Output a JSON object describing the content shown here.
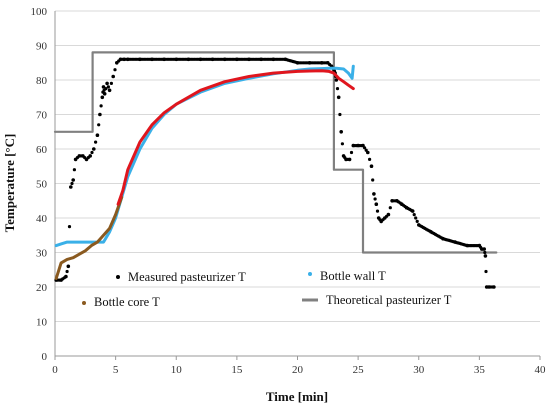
{
  "chart_data": {
    "type": "scatter",
    "title": "",
    "xlabel": "Time [min]",
    "ylabel": "Temperature [°C]",
    "xlim": [
      0,
      40
    ],
    "ylim": [
      0,
      100
    ],
    "xticks": [
      0,
      5,
      10,
      15,
      20,
      25,
      30,
      35,
      40
    ],
    "yticks": [
      0,
      10,
      20,
      30,
      40,
      50,
      60,
      70,
      80,
      90,
      100
    ],
    "grid": "horizontal",
    "legend": "inside-bottom",
    "series": [
      {
        "name": "Theoretical pasteurizer T",
        "kind": "line",
        "color": "#808080",
        "x": [
          0,
          3.1,
          3.1,
          23.0,
          23.0,
          25.4,
          25.4,
          36.4
        ],
        "y": [
          65,
          65,
          88,
          88,
          54,
          54,
          30,
          30
        ]
      },
      {
        "name": "Measured pasteurizer T",
        "kind": "scatter",
        "color": "#000000",
        "x": [
          0.1,
          0.5,
          0.9,
          1.1,
          1.3,
          1.5,
          1.7,
          2.0,
          2.3,
          2.6,
          2.9,
          3.2,
          3.5,
          3.7,
          3.9,
          4.0,
          4.1,
          4.3,
          4.5,
          4.8,
          5.1,
          5.4,
          5.7,
          6,
          7,
          8,
          9,
          10,
          11,
          12,
          13,
          14,
          15,
          16,
          17,
          18,
          19,
          20,
          21,
          22,
          22.5,
          22.8,
          23.0,
          23.1,
          23.2,
          23.4,
          23.6,
          23.8,
          24.0,
          24.3,
          24.6,
          25.0,
          25.4,
          25.8,
          26.1,
          26.3,
          26.5,
          26.7,
          26.9,
          27.2,
          27.5,
          27.8,
          28.2,
          28.6,
          29.0,
          29.5,
          30,
          31,
          32,
          33,
          34,
          35,
          35.2,
          35.4,
          35.5,
          35.6,
          35.8,
          36.2
        ],
        "y": [
          22,
          22,
          23,
          26,
          49,
          51,
          57,
          58,
          58,
          57,
          58,
          60,
          64,
          70,
          75,
          78,
          76,
          79,
          77,
          81,
          85,
          86,
          86,
          86,
          86,
          86,
          86,
          86,
          86,
          86,
          86,
          86,
          86,
          86,
          86,
          86,
          86,
          85,
          85,
          85,
          85,
          84,
          83,
          82,
          80,
          75,
          65,
          58,
          57,
          57,
          61,
          61,
          61,
          59,
          55,
          47,
          44,
          40,
          39,
          40,
          41,
          45,
          45,
          44,
          43,
          42,
          38,
          36,
          34,
          33,
          32,
          32,
          31,
          31,
          29,
          20,
          20,
          20
        ]
      },
      {
        "name": "Bottle wall T",
        "kind": "line",
        "color": "#3ab0e8",
        "x": [
          0.1,
          0.5,
          1,
          2,
          3,
          4,
          4.5,
          5,
          5.5,
          6,
          7,
          8,
          9,
          10,
          12,
          14,
          16,
          18,
          20,
          21,
          22,
          22.6,
          23.2,
          23.8,
          24.2,
          24.5,
          24.6
        ],
        "y": [
          32,
          32.5,
          33,
          33,
          33,
          33,
          36,
          40,
          46,
          52,
          60,
          66,
          70,
          73,
          76.5,
          79,
          80.5,
          81.8,
          82.8,
          83.2,
          83.3,
          83.4,
          83.4,
          83.2,
          82,
          80.5,
          84
        ]
      },
      {
        "name": "Bottle core T",
        "kind": "line",
        "color": "#8a5a20",
        "x": [
          0.1,
          0.5,
          1,
          1.5,
          2,
          2.5,
          3,
          3.5,
          4,
          4.5,
          5,
          5.5
        ],
        "y": [
          22.5,
          27,
          28,
          28.5,
          29.5,
          30.5,
          32,
          33,
          35,
          37,
          41,
          46
        ]
      },
      {
        "name": "",
        "kind": "line",
        "color": "#e0161e",
        "x": [
          5.2,
          5.6,
          6,
          7,
          8,
          9,
          10,
          12,
          14,
          16,
          18,
          20,
          21,
          22,
          22.6,
          23.0,
          23.4,
          23.8,
          24.2,
          24.6
        ],
        "y": [
          44,
          48,
          54,
          62,
          67,
          70.5,
          73,
          77,
          79.5,
          81,
          82,
          82.5,
          82.6,
          82.7,
          82.5,
          82.0,
          80.5,
          79.5,
          78.5,
          77.5
        ]
      }
    ]
  }
}
